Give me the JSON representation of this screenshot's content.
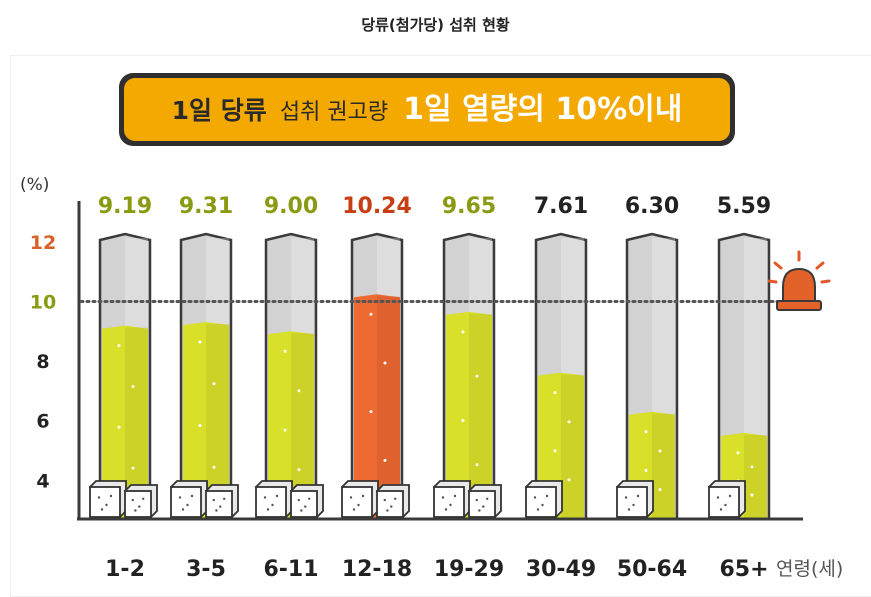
{
  "page_title": "당류(첨가당) 섭취 현황",
  "banner": {
    "prefix_bold": "1일 당류",
    "middle": "섭취 권고량",
    "highlight": "1일 열량의 10%이내"
  },
  "alarm_icon": "siren-icon",
  "colors": {
    "normal_fill": "#d9e02a",
    "exceed_fill": "#ef6a32",
    "tube_bg": "#d2d2d2",
    "tube_border": "#3a3a3a",
    "banner_bg": "#f3a900",
    "label_normal": "#8a9a12",
    "label_exceed": "#c63e12",
    "label_dark": "#222222",
    "tick_12": "#d9622a",
    "tick_10": "#8a9a12"
  },
  "chart_data": {
    "type": "bar",
    "ylabel": "(%)",
    "xlabel": "연령(세)",
    "ylim": [
      2.7,
      12.7
    ],
    "yticks": [
      {
        "value": 12,
        "label": "12"
      },
      {
        "value": 10,
        "label": "10"
      },
      {
        "value": 8,
        "label": "8"
      },
      {
        "value": 6,
        "label": "6"
      },
      {
        "value": 4,
        "label": "4"
      }
    ],
    "reference_line": 10,
    "categories": [
      "1-2",
      "3-5",
      "6-11",
      "12-18",
      "19-29",
      "30-49",
      "50-64",
      "65+"
    ],
    "values": [
      9.19,
      9.31,
      9.0,
      10.24,
      9.65,
      7.61,
      6.3,
      5.59
    ],
    "value_labels": [
      "9.19",
      "9.31",
      "9.00",
      "10.24",
      "9.65",
      "7.61",
      "6.30",
      "5.59"
    ],
    "cubes": [
      2,
      2,
      2,
      2,
      2,
      1,
      1,
      1
    ]
  }
}
